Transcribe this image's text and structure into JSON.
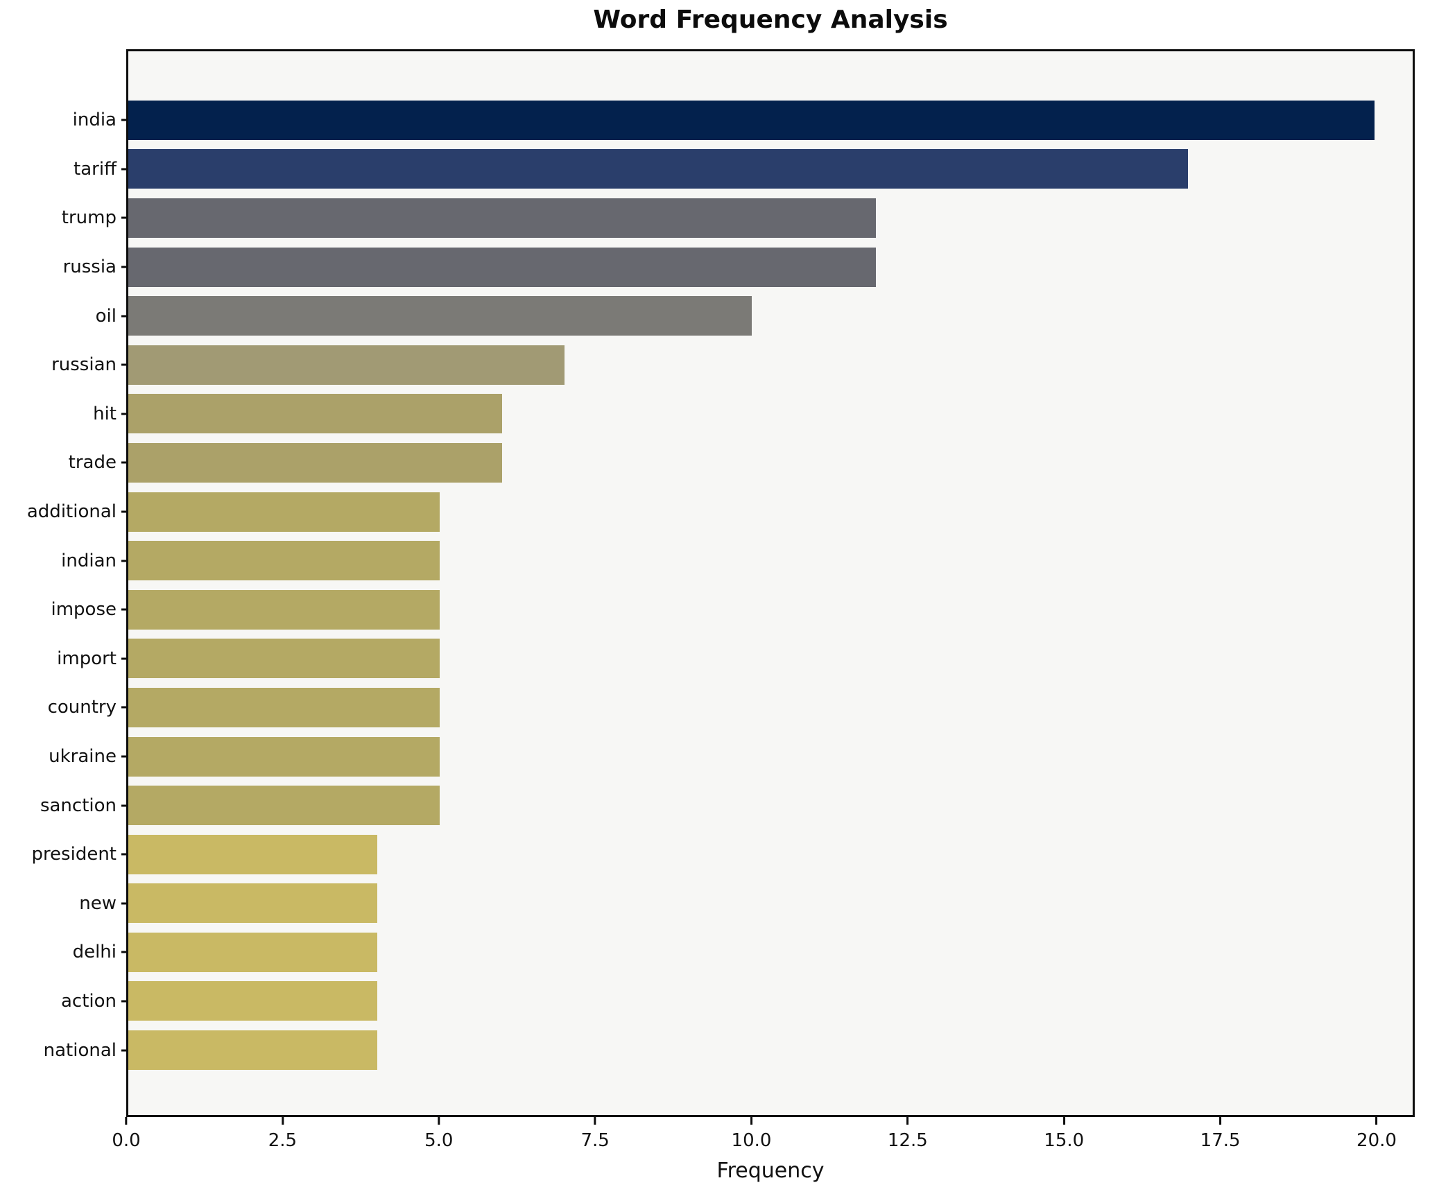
{
  "figure": {
    "title": "Word Frequency Analysis"
  },
  "chart_data": {
    "type": "bar",
    "orientation": "horizontal",
    "title": "Word Frequency Analysis",
    "xlabel": "Frequency",
    "ylabel": "",
    "grid": false,
    "legend": null,
    "plot_background": "#f7f7f5",
    "axis_color": "#0d0d0d",
    "xlim": [
      0,
      20.61
    ],
    "xticks": [
      0,
      2.5,
      5,
      7.5,
      10,
      12.5,
      15,
      17.5,
      20
    ],
    "xtick_labels": [
      "0.0",
      "2.5",
      "5.0",
      "7.5",
      "10.0",
      "12.5",
      "15.0",
      "17.5",
      "20.0"
    ],
    "categories": [
      "india",
      "tariff",
      "trump",
      "russia",
      "oil",
      "russian",
      "hit",
      "trade",
      "additional",
      "indian",
      "impose",
      "import",
      "country",
      "ukraine",
      "sanction",
      "president",
      "new",
      "delhi",
      "action",
      "national"
    ],
    "values": [
      20,
      17,
      12,
      12,
      10,
      7,
      6,
      6,
      5,
      5,
      5,
      5,
      5,
      5,
      5,
      4,
      4,
      4,
      4,
      4
    ],
    "bar_colors": [
      "#03214d",
      "#2a3e6b",
      "#67686f",
      "#67686f",
      "#7b7a76",
      "#a19a74",
      "#aba169",
      "#aba169",
      "#b4a964",
      "#b4a964",
      "#b4a964",
      "#b4a964",
      "#b4a964",
      "#b4a964",
      "#b4a964",
      "#c9b964",
      "#c9b964",
      "#c9b964",
      "#c9b964",
      "#c9b964"
    ]
  }
}
